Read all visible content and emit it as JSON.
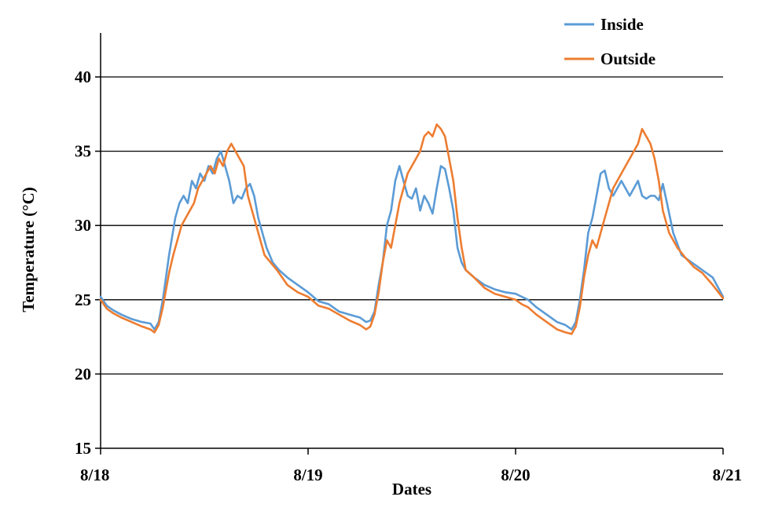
{
  "chart_data": {
    "type": "line",
    "title": "",
    "xlabel": "Dates",
    "ylabel": "Temperature (°C)",
    "xlim": [
      0,
      3
    ],
    "ylim": [
      15,
      42
    ],
    "grid": true,
    "legend_position": "top-right",
    "x_ticks": [
      {
        "value": 0,
        "label": "8/18"
      },
      {
        "value": 1,
        "label": "8/19"
      },
      {
        "value": 2,
        "label": "8/20"
      },
      {
        "value": 3,
        "label": "8/21"
      }
    ],
    "y_ticks": [
      {
        "value": 15,
        "label": "15"
      },
      {
        "value": 20,
        "label": "20"
      },
      {
        "value": 25,
        "label": "25"
      },
      {
        "value": 30,
        "label": "30"
      },
      {
        "value": 35,
        "label": "35"
      },
      {
        "value": 40,
        "label": "40"
      }
    ],
    "series": [
      {
        "name": "Inside",
        "color": "#5B9BD5",
        "points": [
          [
            0.0,
            25.2
          ],
          [
            0.03,
            24.6
          ],
          [
            0.06,
            24.3
          ],
          [
            0.1,
            24.0
          ],
          [
            0.15,
            23.7
          ],
          [
            0.2,
            23.5
          ],
          [
            0.24,
            23.4
          ],
          [
            0.26,
            23.0
          ],
          [
            0.28,
            23.5
          ],
          [
            0.3,
            25.0
          ],
          [
            0.33,
            28.0
          ],
          [
            0.36,
            30.5
          ],
          [
            0.38,
            31.5
          ],
          [
            0.4,
            32.0
          ],
          [
            0.42,
            31.5
          ],
          [
            0.44,
            33.0
          ],
          [
            0.46,
            32.5
          ],
          [
            0.48,
            33.5
          ],
          [
            0.5,
            33.0
          ],
          [
            0.52,
            34.0
          ],
          [
            0.54,
            33.5
          ],
          [
            0.56,
            34.5
          ],
          [
            0.58,
            35.0
          ],
          [
            0.6,
            34.0
          ],
          [
            0.62,
            33.0
          ],
          [
            0.64,
            31.5
          ],
          [
            0.66,
            32.0
          ],
          [
            0.68,
            31.8
          ],
          [
            0.7,
            32.5
          ],
          [
            0.72,
            32.8
          ],
          [
            0.74,
            32.0
          ],
          [
            0.76,
            30.5
          ],
          [
            0.78,
            29.5
          ],
          [
            0.8,
            28.5
          ],
          [
            0.83,
            27.5
          ],
          [
            0.86,
            27.0
          ],
          [
            0.9,
            26.5
          ],
          [
            0.95,
            26.0
          ],
          [
            1.0,
            25.5
          ],
          [
            1.05,
            24.9
          ],
          [
            1.1,
            24.7
          ],
          [
            1.15,
            24.2
          ],
          [
            1.2,
            24.0
          ],
          [
            1.25,
            23.8
          ],
          [
            1.28,
            23.5
          ],
          [
            1.3,
            23.6
          ],
          [
            1.32,
            24.2
          ],
          [
            1.34,
            26.0
          ],
          [
            1.36,
            27.5
          ],
          [
            1.38,
            30.0
          ],
          [
            1.4,
            31.0
          ],
          [
            1.42,
            33.0
          ],
          [
            1.44,
            34.0
          ],
          [
            1.46,
            33.0
          ],
          [
            1.48,
            32.0
          ],
          [
            1.5,
            31.8
          ],
          [
            1.52,
            32.5
          ],
          [
            1.54,
            31.0
          ],
          [
            1.56,
            32.0
          ],
          [
            1.58,
            31.5
          ],
          [
            1.6,
            30.8
          ],
          [
            1.62,
            32.5
          ],
          [
            1.64,
            34.0
          ],
          [
            1.66,
            33.8
          ],
          [
            1.68,
            32.5
          ],
          [
            1.7,
            31.0
          ],
          [
            1.72,
            28.5
          ],
          [
            1.74,
            27.5
          ],
          [
            1.76,
            27.0
          ],
          [
            1.8,
            26.5
          ],
          [
            1.85,
            26.0
          ],
          [
            1.9,
            25.7
          ],
          [
            1.95,
            25.5
          ],
          [
            2.0,
            25.4
          ],
          [
            2.03,
            25.2
          ],
          [
            2.06,
            25.0
          ],
          [
            2.1,
            24.5
          ],
          [
            2.15,
            24.0
          ],
          [
            2.2,
            23.5
          ],
          [
            2.24,
            23.3
          ],
          [
            2.27,
            23.0
          ],
          [
            2.29,
            23.5
          ],
          [
            2.31,
            25.0
          ],
          [
            2.33,
            27.0
          ],
          [
            2.35,
            29.5
          ],
          [
            2.37,
            30.5
          ],
          [
            2.39,
            32.0
          ],
          [
            2.41,
            33.5
          ],
          [
            2.43,
            33.7
          ],
          [
            2.45,
            32.5
          ],
          [
            2.47,
            32.0
          ],
          [
            2.49,
            32.5
          ],
          [
            2.51,
            33.0
          ],
          [
            2.53,
            32.5
          ],
          [
            2.55,
            32.0
          ],
          [
            2.57,
            32.5
          ],
          [
            2.59,
            33.0
          ],
          [
            2.61,
            32.0
          ],
          [
            2.63,
            31.8
          ],
          [
            2.65,
            32.0
          ],
          [
            2.67,
            32.0
          ],
          [
            2.69,
            31.7
          ],
          [
            2.71,
            32.8
          ],
          [
            2.73,
            31.5
          ],
          [
            2.76,
            29.5
          ],
          [
            2.8,
            28.0
          ],
          [
            2.85,
            27.5
          ],
          [
            2.9,
            27.0
          ],
          [
            2.95,
            26.5
          ],
          [
            3.0,
            25.2
          ]
        ]
      },
      {
        "name": "Outside",
        "color": "#ED7D31",
        "points": [
          [
            0.0,
            25.0
          ],
          [
            0.03,
            24.4
          ],
          [
            0.06,
            24.1
          ],
          [
            0.1,
            23.8
          ],
          [
            0.15,
            23.5
          ],
          [
            0.2,
            23.2
          ],
          [
            0.24,
            23.0
          ],
          [
            0.26,
            22.8
          ],
          [
            0.28,
            23.3
          ],
          [
            0.3,
            24.5
          ],
          [
            0.33,
            26.8
          ],
          [
            0.35,
            28.0
          ],
          [
            0.37,
            29.0
          ],
          [
            0.39,
            30.0
          ],
          [
            0.41,
            30.5
          ],
          [
            0.43,
            31.0
          ],
          [
            0.45,
            31.5
          ],
          [
            0.47,
            32.5
          ],
          [
            0.49,
            33.0
          ],
          [
            0.51,
            33.5
          ],
          [
            0.53,
            34.0
          ],
          [
            0.55,
            33.5
          ],
          [
            0.57,
            34.5
          ],
          [
            0.59,
            34.0
          ],
          [
            0.61,
            35.0
          ],
          [
            0.63,
            35.5
          ],
          [
            0.65,
            35.0
          ],
          [
            0.67,
            34.5
          ],
          [
            0.69,
            34.0
          ],
          [
            0.71,
            32.0
          ],
          [
            0.73,
            31.0
          ],
          [
            0.75,
            30.0
          ],
          [
            0.77,
            29.0
          ],
          [
            0.79,
            28.0
          ],
          [
            0.82,
            27.5
          ],
          [
            0.85,
            27.0
          ],
          [
            0.9,
            26.0
          ],
          [
            0.95,
            25.5
          ],
          [
            1.0,
            25.2
          ],
          [
            1.05,
            24.6
          ],
          [
            1.1,
            24.4
          ],
          [
            1.15,
            24.0
          ],
          [
            1.2,
            23.6
          ],
          [
            1.25,
            23.3
          ],
          [
            1.28,
            23.0
          ],
          [
            1.3,
            23.2
          ],
          [
            1.32,
            24.0
          ],
          [
            1.34,
            25.5
          ],
          [
            1.36,
            27.5
          ],
          [
            1.38,
            29.0
          ],
          [
            1.4,
            28.5
          ],
          [
            1.42,
            30.0
          ],
          [
            1.44,
            31.5
          ],
          [
            1.46,
            32.5
          ],
          [
            1.48,
            33.5
          ],
          [
            1.5,
            34.0
          ],
          [
            1.52,
            34.5
          ],
          [
            1.54,
            35.0
          ],
          [
            1.56,
            36.0
          ],
          [
            1.58,
            36.3
          ],
          [
            1.6,
            36.0
          ],
          [
            1.62,
            36.8
          ],
          [
            1.64,
            36.5
          ],
          [
            1.66,
            36.0
          ],
          [
            1.68,
            34.5
          ],
          [
            1.7,
            33.0
          ],
          [
            1.72,
            30.5
          ],
          [
            1.74,
            28.5
          ],
          [
            1.76,
            27.0
          ],
          [
            1.8,
            26.5
          ],
          [
            1.85,
            25.8
          ],
          [
            1.9,
            25.4
          ],
          [
            1.95,
            25.2
          ],
          [
            2.0,
            25.0
          ],
          [
            2.03,
            24.7
          ],
          [
            2.06,
            24.5
          ],
          [
            2.1,
            24.0
          ],
          [
            2.15,
            23.5
          ],
          [
            2.2,
            23.0
          ],
          [
            2.24,
            22.8
          ],
          [
            2.27,
            22.7
          ],
          [
            2.29,
            23.2
          ],
          [
            2.31,
            24.5
          ],
          [
            2.33,
            26.5
          ],
          [
            2.35,
            28.0
          ],
          [
            2.37,
            29.0
          ],
          [
            2.39,
            28.5
          ],
          [
            2.41,
            29.5
          ],
          [
            2.43,
            30.5
          ],
          [
            2.45,
            31.5
          ],
          [
            2.47,
            32.5
          ],
          [
            2.49,
            33.0
          ],
          [
            2.51,
            33.5
          ],
          [
            2.53,
            34.0
          ],
          [
            2.55,
            34.5
          ],
          [
            2.57,
            35.0
          ],
          [
            2.59,
            35.5
          ],
          [
            2.61,
            36.5
          ],
          [
            2.63,
            36.0
          ],
          [
            2.65,
            35.5
          ],
          [
            2.67,
            34.5
          ],
          [
            2.69,
            33.0
          ],
          [
            2.71,
            31.0
          ],
          [
            2.74,
            29.5
          ],
          [
            2.78,
            28.5
          ],
          [
            2.82,
            27.8
          ],
          [
            2.86,
            27.2
          ],
          [
            2.9,
            26.8
          ],
          [
            2.95,
            26.0
          ],
          [
            3.0,
            25.1
          ]
        ]
      }
    ]
  }
}
